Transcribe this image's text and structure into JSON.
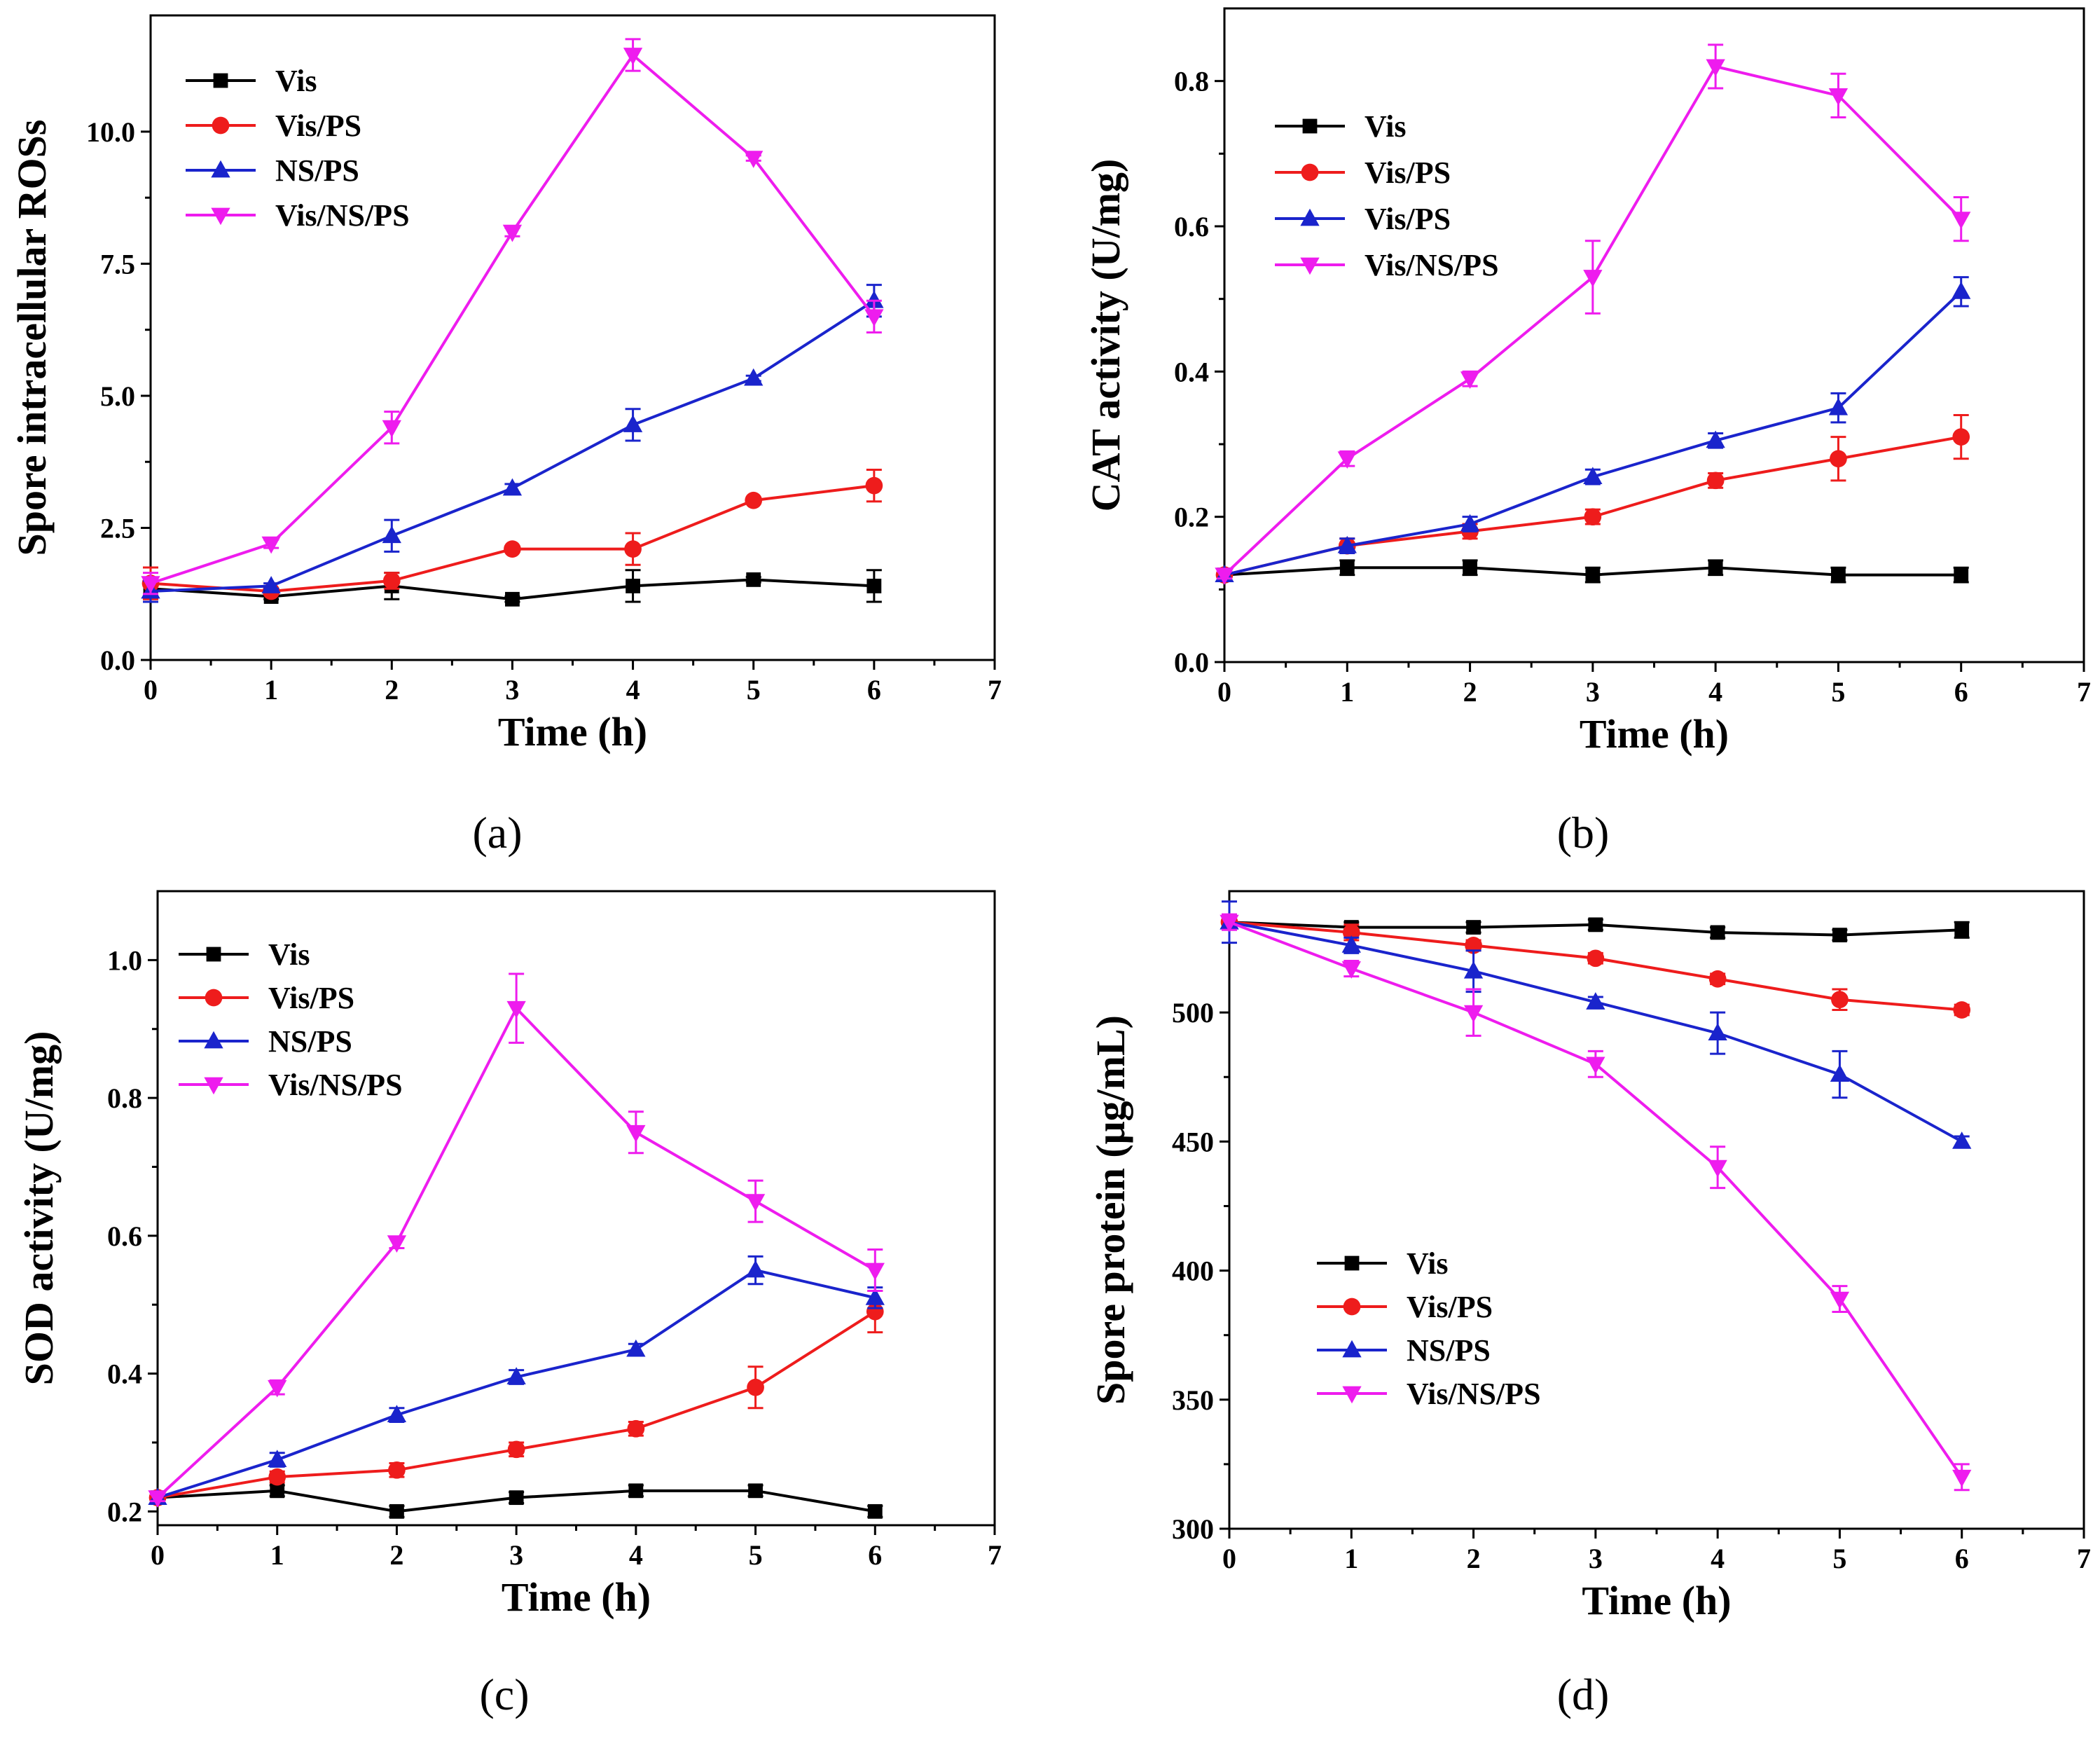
{
  "colors": {
    "Vis": "#000000",
    "Vis/PS": "#ee1c1c",
    "NS/PS": "#1a24cc",
    "Vis/NS/PS": "#ee1cee",
    "Vis/PS (b)": "#1a24cc"
  },
  "chart_data": [
    {
      "id": "a",
      "type": "line",
      "caption": "(a)",
      "xlabel": "Time (h)",
      "ylabel": "Spore intracellular ROSs",
      "xlim": [
        0,
        7
      ],
      "ylim": [
        0,
        12.2
      ],
      "xticks": [
        0,
        1,
        2,
        3,
        4,
        5,
        6,
        7
      ],
      "yticks": [
        "0.0",
        "2.5",
        "5.0",
        "7.5",
        "10.0"
      ],
      "ytick_values": [
        0,
        2.5,
        5.0,
        7.5,
        10.0
      ],
      "legend_position": "top-left",
      "x": [
        0,
        1,
        2,
        3,
        4,
        5,
        6
      ],
      "series": [
        {
          "name": "Vis",
          "color": "#000000",
          "marker": "square",
          "values": [
            1.35,
            1.2,
            1.4,
            1.15,
            1.4,
            1.52,
            1.4
          ],
          "errors": [
            0.1,
            0.05,
            0.25,
            0.05,
            0.3,
            0.05,
            0.3
          ]
        },
        {
          "name": "Vis/PS",
          "color": "#ee1c1c",
          "marker": "circle",
          "values": [
            1.45,
            1.3,
            1.5,
            2.1,
            2.1,
            3.02,
            3.3
          ],
          "errors": [
            0.3,
            0.05,
            0.15,
            0.05,
            0.3,
            0.05,
            0.3
          ]
        },
        {
          "name": "NS/PS",
          "color": "#1a24cc",
          "marker": "triangle-up",
          "values": [
            1.3,
            1.4,
            2.35,
            3.25,
            4.45,
            5.33,
            6.8
          ],
          "errors": [
            0.2,
            0.05,
            0.3,
            0.08,
            0.3,
            0.05,
            0.3
          ]
        },
        {
          "name": "Vis/NS/PS",
          "color": "#ee1cee",
          "marker": "triangle-down",
          "values": [
            1.45,
            2.2,
            4.4,
            8.1,
            11.45,
            9.5,
            6.5
          ],
          "errors": [
            0.2,
            0.08,
            0.3,
            0.08,
            0.3,
            0.05,
            0.3
          ]
        }
      ]
    },
    {
      "id": "b",
      "type": "line",
      "caption": "(b)",
      "xlabel": "Time (h)",
      "ylabel": "CAT activity (U/mg)",
      "xlim": [
        0,
        7
      ],
      "ylim": [
        0,
        0.9
      ],
      "xticks": [
        0,
        1,
        2,
        3,
        4,
        5,
        6,
        7
      ],
      "yticks": [
        "0.0",
        "0.2",
        "0.4",
        "0.6",
        "0.8"
      ],
      "ytick_values": [
        0,
        0.2,
        0.4,
        0.6,
        0.8
      ],
      "legend_position": "top-left",
      "x": [
        0,
        1,
        2,
        3,
        4,
        5,
        6
      ],
      "series": [
        {
          "name": "Vis",
          "color": "#000000",
          "marker": "square",
          "values": [
            0.12,
            0.13,
            0.13,
            0.12,
            0.13,
            0.12,
            0.12
          ],
          "errors": [
            0.005,
            0.01,
            0.01,
            0.01,
            0.01,
            0.01,
            0.01
          ]
        },
        {
          "name": "Vis/PS",
          "color": "#ee1c1c",
          "marker": "circle",
          "values": [
            0.12,
            0.16,
            0.18,
            0.2,
            0.25,
            0.28,
            0.31
          ],
          "errors": [
            0.005,
            0.01,
            0.01,
            0.01,
            0.01,
            0.03,
            0.03
          ]
        },
        {
          "name": "Vis/PS",
          "color": "#1a24cc",
          "marker": "triangle-up",
          "values": [
            0.12,
            0.16,
            0.19,
            0.255,
            0.305,
            0.35,
            0.51
          ],
          "errors": [
            0.005,
            0.01,
            0.01,
            0.01,
            0.01,
            0.02,
            0.02
          ]
        },
        {
          "name": "Vis/NS/PS",
          "color": "#ee1cee",
          "marker": "triangle-down",
          "values": [
            0.12,
            0.28,
            0.39,
            0.53,
            0.82,
            0.78,
            0.61
          ],
          "errors": [
            0.005,
            0.01,
            0.01,
            0.05,
            0.03,
            0.03,
            0.03
          ]
        }
      ]
    },
    {
      "id": "c",
      "type": "line",
      "caption": "(c)",
      "xlabel": "Time (h)",
      "ylabel": "SOD activity (U/mg)",
      "xlim": [
        0,
        7
      ],
      "ylim": [
        0.18,
        1.1
      ],
      "xticks": [
        0,
        1,
        2,
        3,
        4,
        5,
        6,
        7
      ],
      "yticks": [
        "0.2",
        "0.4",
        "0.6",
        "0.8",
        "1.0"
      ],
      "ytick_values": [
        0.2,
        0.4,
        0.6,
        0.8,
        1.0
      ],
      "legend_position": "top-left",
      "x": [
        0,
        1,
        2,
        3,
        4,
        5,
        6
      ],
      "series": [
        {
          "name": "Vis",
          "color": "#000000",
          "marker": "square",
          "values": [
            0.22,
            0.23,
            0.2,
            0.22,
            0.23,
            0.23,
            0.2
          ],
          "errors": [
            0.005,
            0.008,
            0.008,
            0.008,
            0.008,
            0.008,
            0.008
          ]
        },
        {
          "name": "Vis/PS",
          "color": "#ee1c1c",
          "marker": "circle",
          "values": [
            0.22,
            0.25,
            0.26,
            0.29,
            0.32,
            0.38,
            0.49
          ],
          "errors": [
            0.005,
            0.008,
            0.01,
            0.01,
            0.01,
            0.03,
            0.03
          ]
        },
        {
          "name": "NS/PS",
          "color": "#1a24cc",
          "marker": "triangle-up",
          "values": [
            0.22,
            0.275,
            0.34,
            0.395,
            0.435,
            0.55,
            0.51
          ],
          "errors": [
            0.005,
            0.01,
            0.01,
            0.01,
            0.008,
            0.02,
            0.015
          ]
        },
        {
          "name": "Vis/NS/PS",
          "color": "#ee1cee",
          "marker": "triangle-down",
          "values": [
            0.22,
            0.38,
            0.59,
            0.93,
            0.75,
            0.65,
            0.55
          ],
          "errors": [
            0.005,
            0.01,
            0.008,
            0.05,
            0.03,
            0.03,
            0.03
          ]
        }
      ]
    },
    {
      "id": "d",
      "type": "line",
      "caption": "(d)",
      "xlabel": "Time (h)",
      "ylabel": "Spore protein (μg/mL)",
      "xlim": [
        0,
        7
      ],
      "ylim": [
        300,
        547
      ],
      "xticks": [
        0,
        1,
        2,
        3,
        4,
        5,
        6,
        7
      ],
      "yticks": [
        "300",
        "350",
        "400",
        "450",
        "500"
      ],
      "ytick_values": [
        300,
        350,
        400,
        450,
        500
      ],
      "legend_position": "bottom-left",
      "x": [
        0,
        1,
        2,
        3,
        4,
        5,
        6
      ],
      "series": [
        {
          "name": "Vis",
          "color": "#000000",
          "marker": "square",
          "values": [
            535,
            533,
            533,
            534,
            531,
            530,
            532
          ],
          "errors": [
            2,
            2,
            2,
            2,
            2,
            2,
            3
          ]
        },
        {
          "name": "Vis/PS",
          "color": "#ee1c1c",
          "marker": "circle",
          "values": [
            535,
            531,
            526,
            521,
            513,
            505,
            501
          ],
          "errors": [
            2,
            3,
            2,
            2,
            2,
            4,
            2
          ]
        },
        {
          "name": "NS/PS",
          "color": "#1a24cc",
          "marker": "triangle-up",
          "values": [
            535,
            526,
            516,
            504,
            492,
            476,
            450
          ],
          "errors": [
            8,
            3,
            8,
            2,
            8,
            9,
            2
          ]
        },
        {
          "name": "Vis/NS/PS",
          "color": "#ee1cee",
          "marker": "triangle-down",
          "values": [
            535,
            517,
            500,
            480,
            440,
            389,
            320
          ],
          "errors": [
            3,
            3,
            9,
            5,
            8,
            5,
            5
          ]
        }
      ]
    }
  ]
}
